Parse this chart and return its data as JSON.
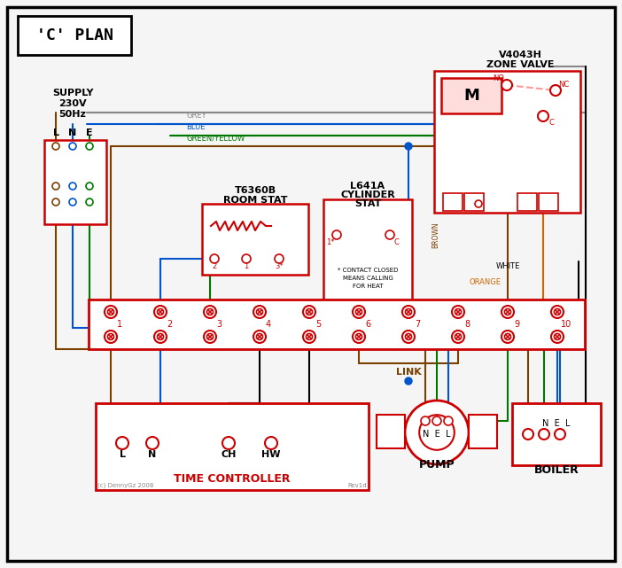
{
  "bg": "#f5f5f5",
  "black": "#000000",
  "red": "#cc0000",
  "blue": "#0055cc",
  "green": "#007700",
  "brown": "#7b3f00",
  "grey": "#888888",
  "orange": "#cc6600",
  "pink": "#ff9999",
  "darkgrey": "#555555",
  "title": "'C' PLAN",
  "supply_lines": [
    "SUPPLY",
    "230V",
    "50Hz"
  ],
  "lne": "L  N  E",
  "zv_title1": "V4043H",
  "zv_title2": "ZONE VALVE",
  "rs_title1": "T6360B",
  "rs_title2": "ROOM STAT",
  "cs_title1": "L641A",
  "cs_title2": "CYLINDER",
  "cs_title3": "STAT",
  "cs_note1": "* CONTACT CLOSED",
  "cs_note2": "MEANS CALLING",
  "cs_note3": "FOR HEAT",
  "tc_label": "TIME CONTROLLER",
  "pump_label": "PUMP",
  "boiler_label": "BOILER",
  "link_label": "LINK",
  "wire_grey": "GREY",
  "wire_blue": "BLUE",
  "wire_gy": "GREEN/YELLOW",
  "wire_brown": "BROWN",
  "wire_white": "WHITE",
  "wire_orange": "ORANGE",
  "copyright": "(c) DennyGz 2008",
  "rev": "Rev1d"
}
